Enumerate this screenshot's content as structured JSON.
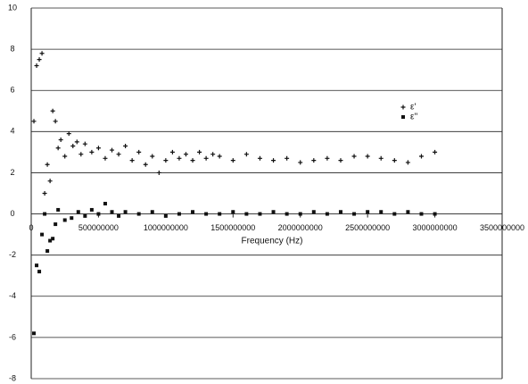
{
  "chart_data": {
    "type": "scatter",
    "x_label": "Frequency (Hz)",
    "xlim": [
      0,
      3500000000
    ],
    "xticks": [
      0,
      500000000,
      1000000000,
      1500000000,
      2000000000,
      2500000000,
      3000000000,
      3500000000
    ],
    "ylim": [
      -8,
      10
    ],
    "yticks": [
      -8,
      -6,
      -4,
      -2,
      0,
      2,
      4,
      6,
      8,
      10
    ],
    "grid": true,
    "legend": "upper right",
    "series": [
      {
        "name": "ε'",
        "color": "#111111",
        "marker": "plus",
        "x": [
          20000000,
          40000000,
          60000000,
          80000000,
          100000000,
          120000000,
          140000000,
          160000000,
          180000000,
          200000000,
          220000000,
          250000000,
          280000000,
          310000000,
          340000000,
          370000000,
          400000000,
          450000000,
          500000000,
          550000000,
          600000000,
          650000000,
          700000000,
          750000000,
          800000000,
          850000000,
          900000000,
          950000000,
          1000000000,
          1050000000,
          1100000000,
          1150000000,
          1200000000,
          1250000000,
          1300000000,
          1350000000,
          1400000000,
          1500000000,
          1600000000,
          1700000000,
          1800000000,
          1900000000,
          2000000000,
          2100000000,
          2200000000,
          2300000000,
          2400000000,
          2500000000,
          2600000000,
          2700000000,
          2800000000,
          2900000000,
          3000000000
        ],
        "values": [
          4.5,
          7.2,
          7.5,
          7.8,
          1.0,
          2.4,
          1.6,
          5.0,
          4.5,
          3.2,
          3.6,
          2.8,
          3.9,
          3.3,
          3.5,
          2.9,
          3.4,
          3.0,
          3.2,
          2.7,
          3.1,
          2.9,
          3.3,
          2.6,
          3.0,
          2.4,
          2.8,
          2.0,
          2.6,
          3.0,
          2.7,
          2.9,
          2.6,
          3.0,
          2.7,
          2.9,
          2.8,
          2.6,
          2.9,
          2.7,
          2.6,
          2.7,
          2.5,
          2.6,
          2.7,
          2.6,
          2.8,
          2.8,
          2.7,
          2.6,
          2.5,
          2.8,
          3.0
        ]
      },
      {
        "name": "ε''",
        "color": "#111111",
        "marker": "square",
        "x": [
          20000000,
          40000000,
          60000000,
          80000000,
          100000000,
          120000000,
          140000000,
          160000000,
          180000000,
          200000000,
          250000000,
          300000000,
          350000000,
          400000000,
          450000000,
          500000000,
          550000000,
          600000000,
          650000000,
          700000000,
          800000000,
          900000000,
          1000000000,
          1100000000,
          1200000000,
          1300000000,
          1400000000,
          1500000000,
          1600000000,
          1700000000,
          1800000000,
          1900000000,
          2000000000,
          2100000000,
          2200000000,
          2300000000,
          2400000000,
          2500000000,
          2600000000,
          2700000000,
          2800000000,
          2900000000,
          3000000000
        ],
        "values": [
          -5.8,
          -2.5,
          -2.8,
          -1.0,
          0.0,
          -1.8,
          -1.3,
          -1.2,
          -0.5,
          0.2,
          -0.3,
          -0.2,
          0.1,
          -0.1,
          0.2,
          0.0,
          0.5,
          0.1,
          -0.1,
          0.1,
          0.0,
          0.1,
          -0.1,
          0.0,
          0.1,
          0.0,
          0.0,
          0.1,
          0.0,
          0.0,
          0.1,
          0.0,
          0.0,
          0.1,
          0.0,
          0.1,
          0.0,
          0.1,
          0.1,
          0.0,
          0.1,
          0.0,
          0.0
        ]
      }
    ]
  }
}
